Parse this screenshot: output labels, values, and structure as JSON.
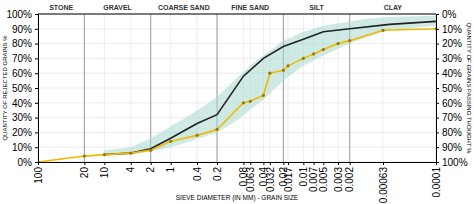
{
  "chart_data": {
    "type": "line",
    "xlabel": "SIEVE DIAMETER (IN MM) - GRAIN SIZE",
    "ylabel": "QUANTITY OF REJECTED GRAINS %",
    "y2label": "QUANTITY OF GRAINS PASSING THOUGHT %",
    "log": "x",
    "grid": true,
    "xlim": [
      100,
      0.0001
    ],
    "xticks": [
      100,
      20,
      10,
      4,
      2,
      1,
      0.4,
      0.2,
      0.08,
      0.063,
      0.04,
      0.032,
      0.02,
      0.017,
      0.01,
      0.007,
      0.005,
      0.003,
      0.002,
      0.00063,
      0.0001
    ],
    "ylim": [
      0,
      100
    ],
    "yticks": [
      {
        "value": 0,
        "label": "0%"
      },
      {
        "value": 10,
        "label": "10%"
      },
      {
        "value": 20,
        "label": "20%"
      },
      {
        "value": 30,
        "label": "30%"
      },
      {
        "value": 40,
        "label": "40%"
      },
      {
        "value": 50,
        "label": "50%"
      },
      {
        "value": 60,
        "label": "60%"
      },
      {
        "value": 70,
        "label": "70%"
      },
      {
        "value": 80,
        "label": "80%"
      },
      {
        "value": 90,
        "label": "90%"
      },
      {
        "value": 100,
        "label": "100%"
      }
    ],
    "y2lim": [
      100,
      0
    ],
    "y2ticks": [
      {
        "value": 100,
        "label": "100%"
      },
      {
        "value": 90,
        "label": "90%"
      },
      {
        "value": 80,
        "label": "80%"
      },
      {
        "value": 70,
        "label": "70%"
      },
      {
        "value": 60,
        "label": "60%"
      },
      {
        "value": 50,
        "label": "50%"
      },
      {
        "value": 40,
        "label": "40%"
      },
      {
        "value": 30,
        "label": "30%"
      },
      {
        "value": 20,
        "label": "20%"
      },
      {
        "value": 10,
        "label": "10%"
      },
      {
        "value": 0,
        "label": "0%"
      }
    ],
    "sections": {
      "labels": [
        "STONE",
        "GRAVEL",
        "COARSE SAND",
        "FINE SAND",
        "SILT",
        "CLAY"
      ],
      "boundaries": [
        100,
        20,
        2,
        0.2,
        0.02,
        0.002,
        0.0001
      ]
    },
    "series": [
      {
        "type": "area",
        "color": "#a8d8d0",
        "x": [
          10,
          4,
          2,
          1,
          0.5,
          0.2,
          0.1,
          0.06,
          0.04,
          0.02,
          0.01,
          0.005,
          0.002,
          0.001,
          0.0005,
          0.0001
        ],
        "upper": [
          5,
          5,
          7,
          10,
          14,
          20,
          28,
          36,
          42,
          55,
          65,
          72,
          80,
          85,
          89,
          92
        ],
        "lower": [
          8,
          10,
          16,
          24,
          32,
          44,
          57,
          66,
          72,
          82,
          88,
          92,
          95,
          97,
          98,
          99
        ]
      },
      {
        "type": "line",
        "color": "#222222",
        "x": [
          10,
          4,
          2,
          1,
          0.4,
          0.2,
          0.08,
          0.04,
          0.02,
          0.01,
          0.005,
          0.002,
          0.0005,
          0.0001
        ],
        "values": [
          5,
          6,
          9,
          16,
          26,
          32,
          58,
          70,
          78,
          83,
          88,
          90,
          93,
          95
        ]
      },
      {
        "type": "line",
        "color": "#f0b800",
        "marker": "circle",
        "x": [
          100,
          20,
          10,
          4,
          2,
          1,
          0.4,
          0.2,
          0.08,
          0.063,
          0.04,
          0.032,
          0.02,
          0.017,
          0.01,
          0.007,
          0.005,
          0.003,
          0.002,
          0.00063,
          0.0001
        ],
        "values": [
          0,
          4,
          5,
          6,
          8,
          14,
          18,
          22,
          40,
          41,
          45,
          60,
          62,
          65,
          70,
          73,
          76,
          80,
          82,
          89,
          90
        ]
      }
    ]
  }
}
